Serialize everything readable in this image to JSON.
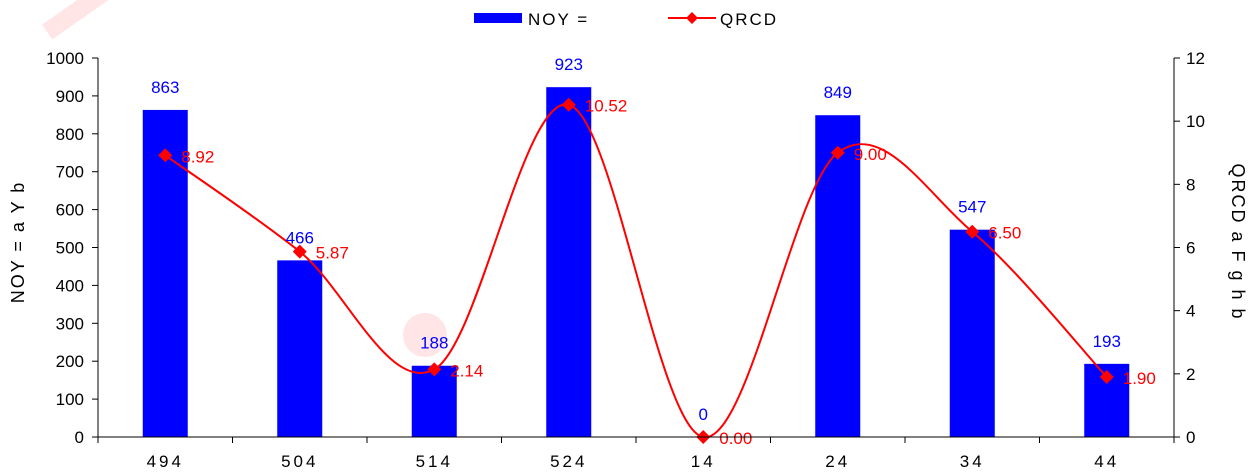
{
  "chart_data": {
    "type": "bar",
    "categories": [
      "494",
      "504",
      "514",
      "524",
      "14",
      "24",
      "34",
      "44"
    ],
    "series": [
      {
        "name": "NOY =",
        "type": "bar",
        "axis": "left",
        "color": "#0000ff",
        "values": [
          863,
          466,
          188,
          923,
          0,
          849,
          547,
          193
        ],
        "labels": [
          "863",
          "466",
          "188",
          "923",
          "0",
          "849",
          "547",
          "193"
        ]
      },
      {
        "name": "QRCD",
        "type": "line",
        "axis": "right",
        "color": "#ff0000",
        "smooth": true,
        "marker": "diamond",
        "values": [
          8.92,
          5.87,
          2.14,
          10.52,
          0.0,
          9.0,
          6.5,
          1.9
        ],
        "labels": [
          "8.92",
          "5.87",
          "2.14",
          "10.52",
          "0.00",
          "9.00",
          "6.50",
          "1.90"
        ]
      }
    ],
    "ylabel": "NOY = a Y b",
    "y2label": "QRCD a F g h b",
    "ylim": [
      0,
      1000
    ],
    "y2lim": [
      0,
      12
    ],
    "yticks": [
      "0",
      "100",
      "200",
      "300",
      "400",
      "500",
      "600",
      "700",
      "800",
      "900",
      "1000"
    ],
    "y2ticks": [
      "0",
      "2",
      "4",
      "6",
      "8",
      "10",
      "12"
    ],
    "legend_position": "top-center",
    "grid": false
  }
}
